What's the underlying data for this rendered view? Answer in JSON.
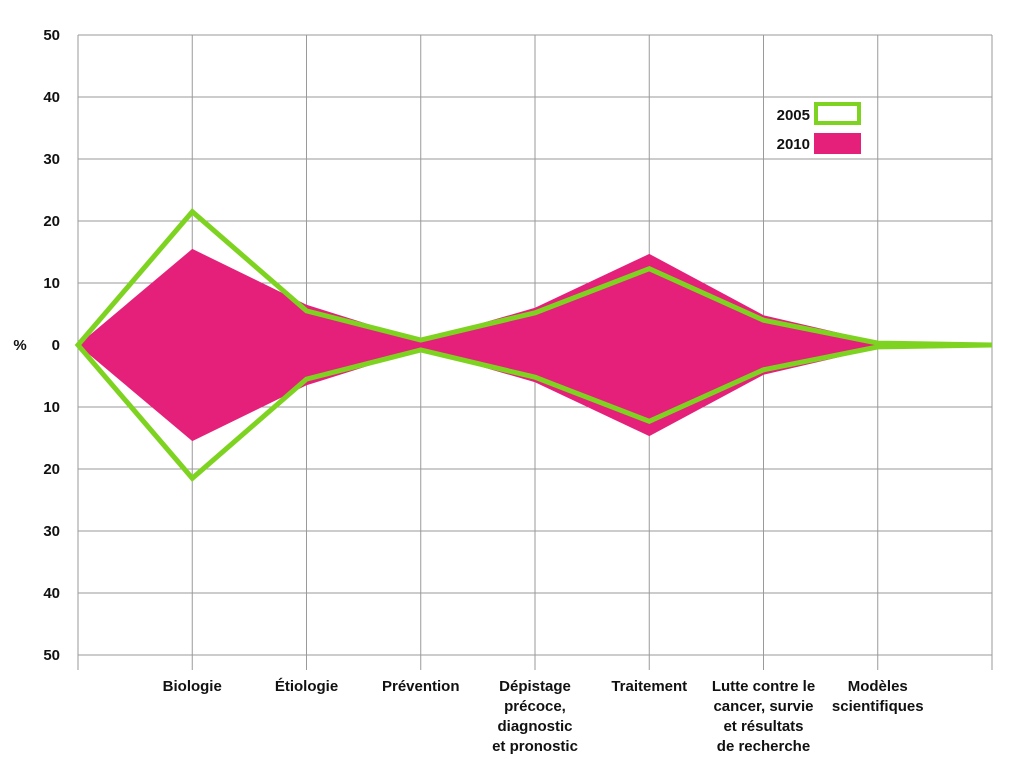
{
  "chart_data": {
    "type": "area",
    "ylabel": "%",
    "ylim": [
      -50,
      50
    ],
    "y_ticks": [
      50,
      40,
      30,
      20,
      10,
      0,
      -10,
      -20,
      -30,
      -40,
      -50
    ],
    "y_tick_labels": [
      "50",
      "40",
      "30",
      "20",
      "10",
      "0",
      "10",
      "20",
      "30",
      "40",
      "50"
    ],
    "grid": true,
    "legend_position": "top-right",
    "categories": [
      "",
      "Biologie",
      "Étiologie",
      "Prévention",
      "Dépistage\nprécoce,\ndiagnostic\net pronostic",
      "Traitement",
      "Lutte contre le\ncancer, survie\net résultats\nde recherche",
      "Modèles\nscientifiques",
      ""
    ],
    "series": [
      {
        "name": "2005",
        "style": "outline",
        "color": "#7ed321",
        "values": [
          0,
          21.5,
          5.5,
          0.8,
          5.2,
          12.3,
          4,
          0.3,
          0
        ]
      },
      {
        "name": "2010",
        "style": "filled",
        "color": "#e5207a",
        "values": [
          0,
          15.5,
          6.5,
          0.7,
          6,
          14.7,
          4.8,
          0.5,
          0
        ]
      }
    ]
  }
}
